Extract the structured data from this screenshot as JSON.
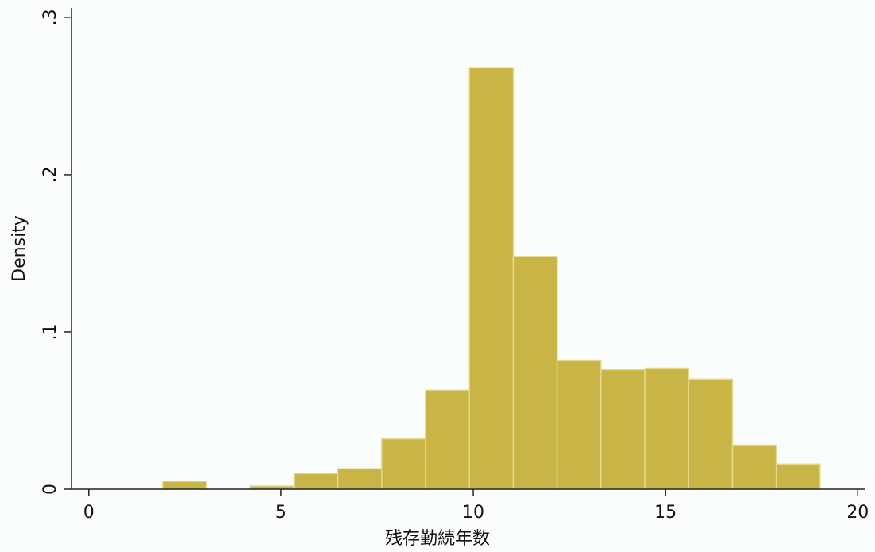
{
  "chart_data": {
    "type": "histogram",
    "x_label": "残存勤続年数",
    "y_label": "Density",
    "bins": [
      1.92,
      3.06,
      4.2,
      5.34,
      6.48,
      7.62,
      8.76,
      9.9,
      11.04,
      12.18,
      13.32,
      14.46,
      15.6,
      16.74,
      17.88,
      19.02
    ],
    "values": [
      0.005,
      0,
      0.002,
      0.01,
      0.013,
      0.032,
      0.063,
      0.268,
      0.148,
      0.082,
      0.076,
      0.077,
      0.07,
      0.028,
      0.016
    ],
    "color": "#c9b446",
    "edge_color": "#e6d88a",
    "xlim": [
      -0.45,
      20.2
    ],
    "xticks": [
      0,
      5,
      10,
      15,
      20
    ],
    "ylim": [
      0,
      0.306
    ],
    "yticks": [
      0,
      {
        "value": 0.1,
        "label": ".1"
      },
      {
        "value": 0.2,
        "label": ".2"
      },
      {
        "value": 0.3,
        "label": ".3"
      }
    ]
  }
}
